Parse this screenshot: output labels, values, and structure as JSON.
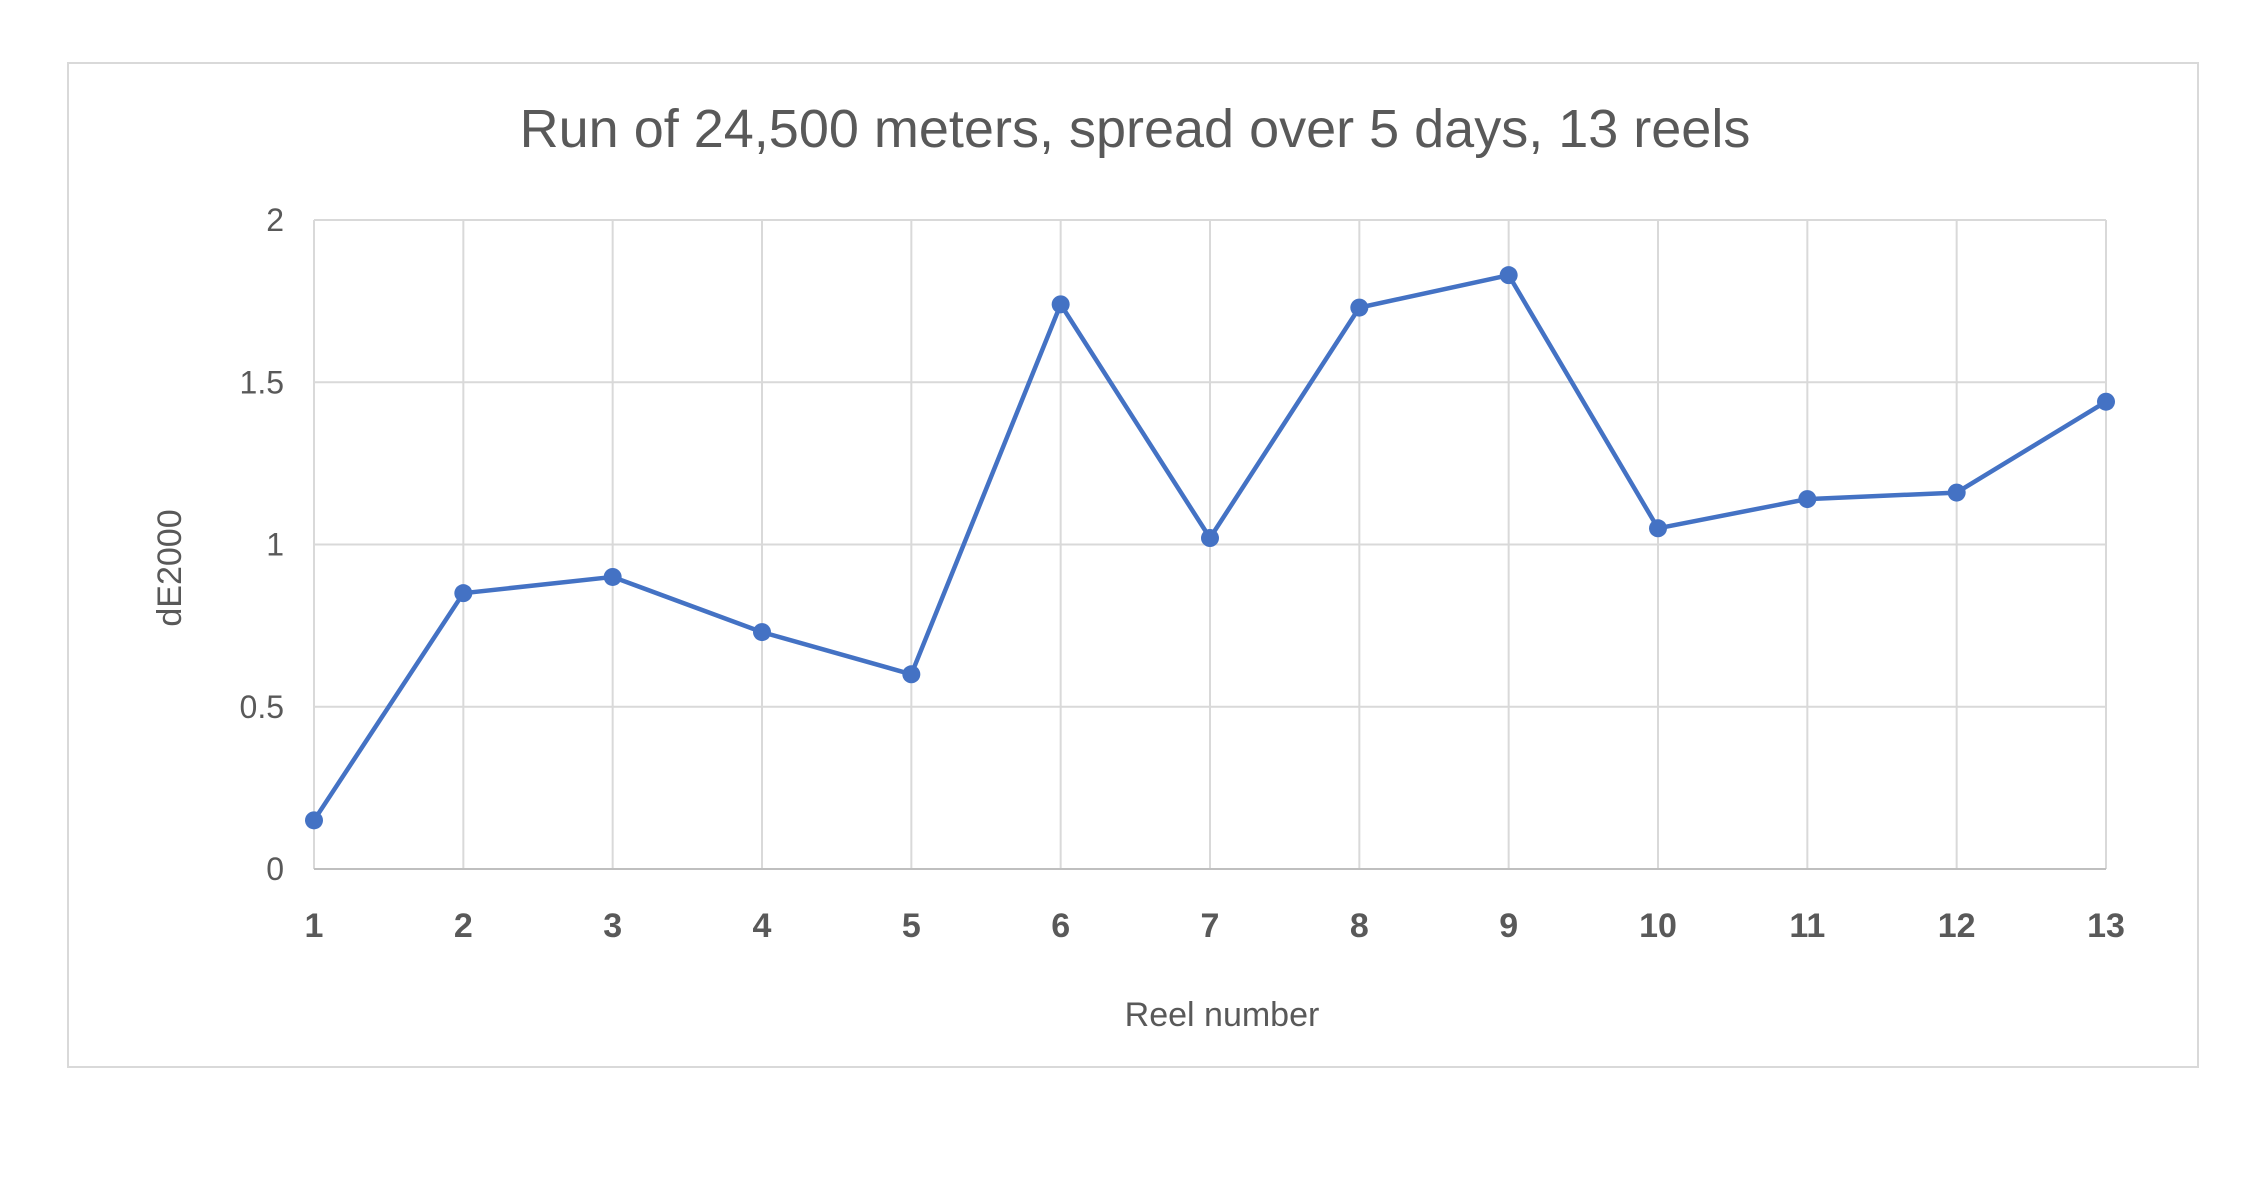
{
  "chart_data": {
    "type": "line",
    "title": "Run of 24,500 meters, spread over 5 days, 13 reels",
    "xlabel": "Reel number",
    "ylabel": "dE2000",
    "categories": [
      "1",
      "2",
      "3",
      "4",
      "5",
      "6",
      "7",
      "8",
      "9",
      "10",
      "11",
      "12",
      "13"
    ],
    "series": [
      {
        "values": [
          0.15,
          0.85,
          0.9,
          0.73,
          0.6,
          1.74,
          1.02,
          1.73,
          1.83,
          1.05,
          1.14,
          1.16,
          1.44
        ]
      }
    ],
    "ylim": [
      0,
      2
    ],
    "yticks": [
      "0",
      "0.5",
      "1",
      "1.5",
      "2"
    ],
    "ytick_values": [
      0,
      0.5,
      1,
      1.5,
      2
    ],
    "grid": true,
    "legend": "none",
    "colors": {
      "series": "#4472c4",
      "grid": "#d9d9d9",
      "text": "#595959"
    }
  }
}
